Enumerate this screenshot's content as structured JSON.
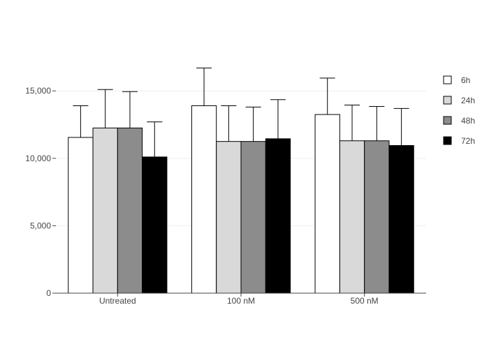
{
  "chart_data": {
    "type": "bar",
    "categories": [
      "Untreated",
      "100 nM",
      "500 nM"
    ],
    "series": [
      {
        "name": "6h",
        "color": "#ffffff",
        "values": [
          11550,
          13900,
          13250
        ],
        "error": [
          2350,
          2800,
          2700
        ]
      },
      {
        "name": "24h",
        "color": "#d9d9d9",
        "values": [
          12250,
          11250,
          11300
        ],
        "error": [
          2850,
          2650,
          2650
        ]
      },
      {
        "name": "48h",
        "color": "#8c8c8c",
        "values": [
          12250,
          11250,
          11300
        ],
        "error": [
          2700,
          2550,
          2550
        ]
      },
      {
        "name": "72h",
        "color": "#000000",
        "values": [
          10100,
          11450,
          10950
        ],
        "error": [
          2600,
          2900,
          2750
        ]
      }
    ],
    "yticks": [
      0,
      5000,
      10000,
      15000
    ],
    "ytick_labels": [
      "0",
      "5,000",
      "10,000",
      "15,000"
    ],
    "ylim": [
      0,
      17600
    ],
    "grid": true,
    "legend_position": "top-right",
    "title": "",
    "xlabel": "",
    "ylabel": ""
  }
}
